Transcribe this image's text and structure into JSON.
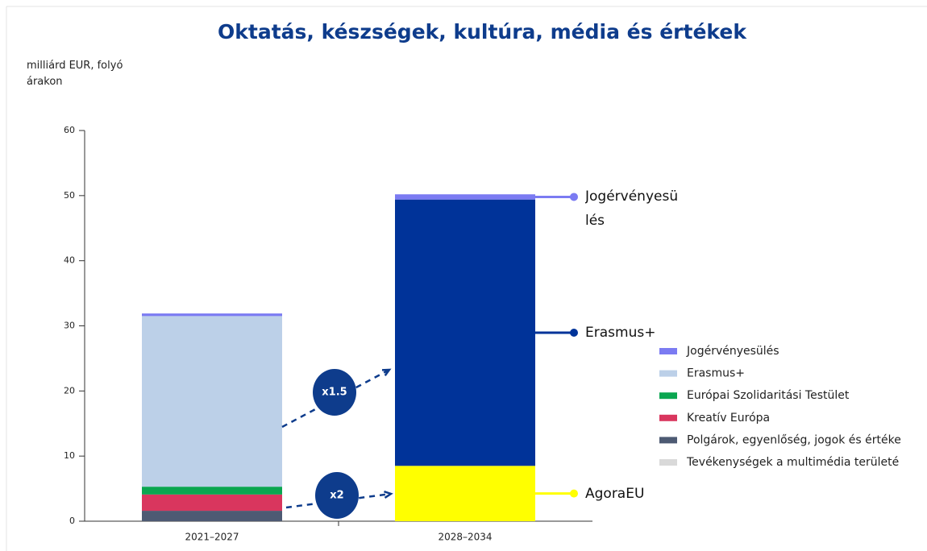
{
  "chart_data": {
    "type": "stacked_bar",
    "title": "Oktatás, készségek, kultúra, média és értékek",
    "y_label": "milliárd EUR, folyó árakon",
    "categories": [
      "2021–2027",
      "2028–2034"
    ],
    "ylim": [
      0,
      60
    ],
    "yticks": [
      0,
      10,
      20,
      30,
      40,
      50,
      60
    ],
    "series": [
      {
        "name": "Tevékenységek a multimédia területé",
        "color": "#d9d9d9",
        "values": [
          0,
          null
        ]
      },
      {
        "name": "Polgárok, egyenlőség, jogok és értéke",
        "color": "#4d5a73",
        "values": [
          1.6,
          null
        ]
      },
      {
        "name": "Kreatív Európa",
        "color": "#d9365e",
        "values": [
          2.5,
          null
        ]
      },
      {
        "name": "Európai Szolidaritási Testület",
        "color": "#0aa650",
        "values": [
          1.2,
          null
        ]
      },
      {
        "name": "AgoraEU",
        "color": "#ffff00",
        "values": [
          null,
          8.5
        ],
        "in_legend": false
      },
      {
        "name": "Erasmus+",
        "color": "#bcd0e8",
        "point_colors": [
          "#bcd0e8",
          "#003399"
        ],
        "values": [
          26.2,
          40.9
        ]
      },
      {
        "name": "Jogérvényesülés",
        "color": "#7b7bf2",
        "values": [
          0.4,
          0.8
        ]
      }
    ],
    "end_labels": [
      {
        "text": "Jogérvényesülés",
        "series": 6,
        "color": "#7b7bf2"
      },
      {
        "text": "Erasmus+",
        "series": 5,
        "color": "#003399"
      },
      {
        "text": "AgoraEU",
        "series": 4,
        "color": "#ffff00"
      }
    ],
    "growth_annotations": [
      {
        "text": "x1.5"
      },
      {
        "text": "x2"
      }
    ]
  }
}
